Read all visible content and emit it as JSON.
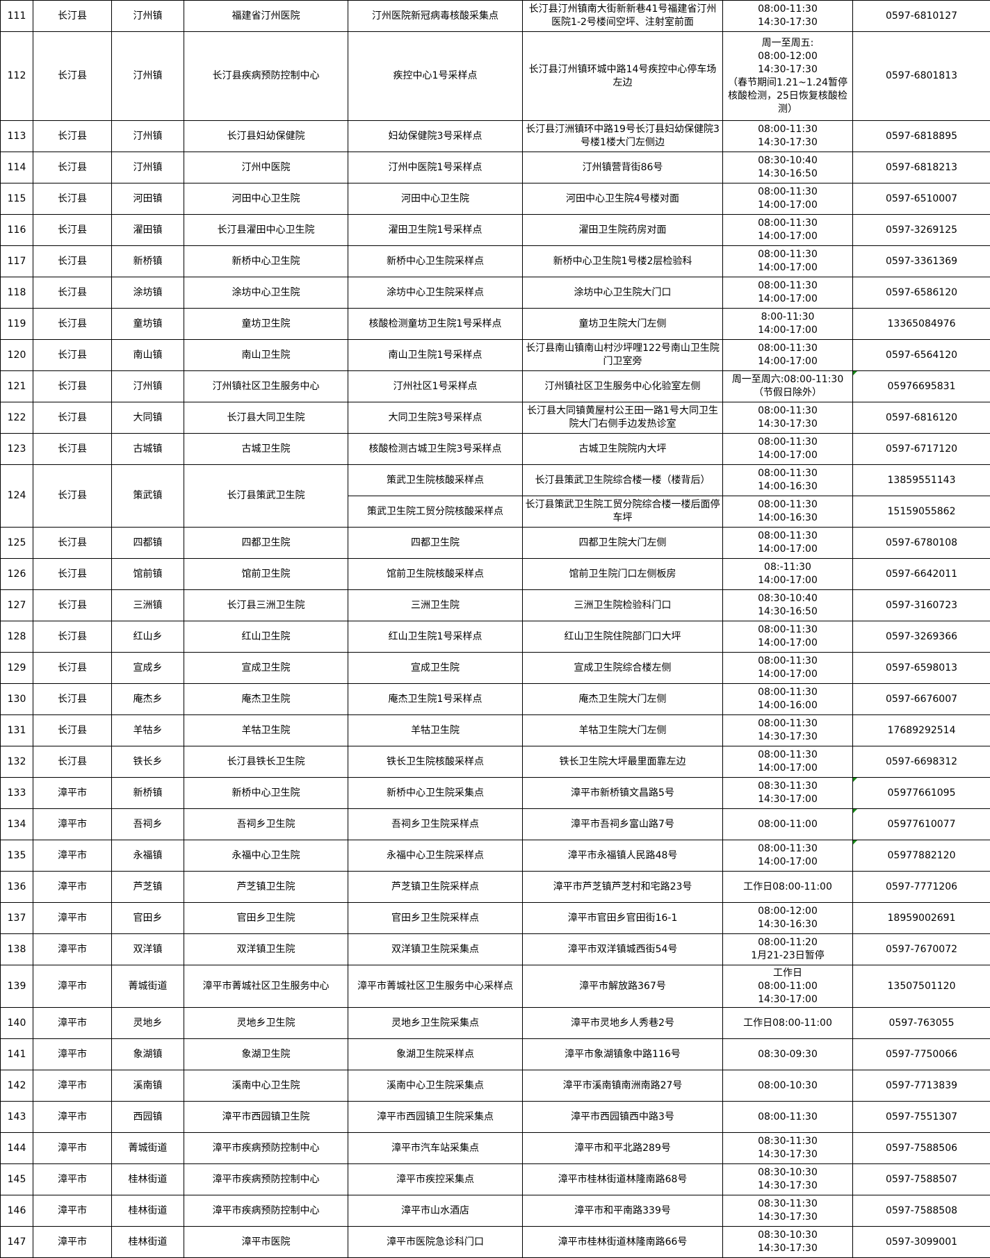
{
  "rows": [
    {
      "no": "111",
      "county": "长汀县",
      "town": "汀州镇",
      "org": "福建省汀州医院",
      "site": "汀州医院新冠病毒核酸采集点",
      "addr": "长汀县汀州镇南大街新新巷41号福建省汀州医院1-2号楼间空坪、注射室前面",
      "time": "08:00-11:30\n14:30-17:30",
      "phone": "0597-6810127"
    },
    {
      "no": "112",
      "county": "长汀县",
      "town": "汀州镇",
      "org": "长汀县疾病预防控制中心",
      "site": "疾控中心1号采样点",
      "addr": "长汀县汀州镇环城中路14号疾控中心停车场左边",
      "time": "周一至周五:\n08:00-12:00\n14:30-17:30\n（春节期间1.21~1.24暂停核酸检测，25日恢复核酸检测）",
      "phone": "0597-6801813"
    },
    {
      "no": "113",
      "county": "长汀县",
      "town": "汀州镇",
      "org": "长汀县妇幼保健院",
      "site": "妇幼保健院3号采样点",
      "addr": "长汀县汀洲镇环中路19号长汀县妇幼保健院3号楼1楼大门左侧边",
      "time": "08:00-11:30\n14:30-17:30",
      "phone": "0597-6818895"
    },
    {
      "no": "114",
      "county": "长汀县",
      "town": "汀州镇",
      "org": "汀州中医院",
      "site": "汀州中医院1号采样点",
      "addr": "汀州镇营背街86号",
      "time": "08:30-10:40\n14:30-16:50",
      "phone": "0597-6818213"
    },
    {
      "no": "115",
      "county": "长汀县",
      "town": "河田镇",
      "org": "河田中心卫生院",
      "site": "河田中心卫生院",
      "addr": "河田中心卫生院4号楼对面",
      "time": "08:00-11:30\n14:00-17:00",
      "phone": "0597-6510007"
    },
    {
      "no": "116",
      "county": "长汀县",
      "town": "濯田镇",
      "org": "长汀县濯田中心卫生院",
      "site": "濯田卫生院1号采样点",
      "addr": "濯田卫生院药房对面",
      "time": "08:00-11:30\n14:00-17:00",
      "phone": "0597-3269125"
    },
    {
      "no": "117",
      "county": "长汀县",
      "town": "新桥镇",
      "org": "新桥中心卫生院",
      "site": "新桥中心卫生院采样点",
      "addr": "新桥中心卫生院1号楼2层检验科",
      "time": "08:00-11:30\n14:00-17:00",
      "phone": "0597-3361369"
    },
    {
      "no": "118",
      "county": "长汀县",
      "town": "涂坊镇",
      "org": "涂坊中心卫生院",
      "site": "涂坊中心卫生院采样点",
      "addr": "涂坊中心卫生院大门口",
      "time": "08:00-11:30\n14:00-17:00",
      "phone": "0597-6586120"
    },
    {
      "no": "119",
      "county": "长汀县",
      "town": "童坊镇",
      "org": "童坊卫生院",
      "site": "核酸检测童坊卫生院1号采样点",
      "addr": "童坊卫生院大门左侧",
      "time": "8:00-11:30\n14:00-17:00",
      "phone": "13365084976"
    },
    {
      "no": "120",
      "county": "长汀县",
      "town": "南山镇",
      "org": "南山卫生院",
      "site": "南山卫生院1号采样点",
      "addr": "长汀县南山镇南山村沙坪哩122号南山卫生院门卫室旁",
      "time": "08:00-11:30\n14:00-17:00",
      "phone": "0597-6564120"
    },
    {
      "no": "121",
      "county": "长汀县",
      "town": "汀州镇",
      "org": "汀州镇社区卫生服务中心",
      "site": "汀州社区1号采样点",
      "addr": "汀州镇社区卫生服务中心化验室左侧",
      "time": "周一至周六:08:00-11:30\n（节假日除外）",
      "phone": "05976695831",
      "flag": true
    },
    {
      "no": "122",
      "county": "长汀县",
      "town": "大同镇",
      "org": "长汀县大同卫生院",
      "site": "大同卫生院3号采样点",
      "addr": "长汀县大同镇黄屋村公王田一路1号大同卫生院大门右侧手边发热诊室",
      "time": "08:00-11:30\n14:30-17:30",
      "phone": "0597-6816120"
    },
    {
      "no": "123",
      "county": "长汀县",
      "town": "古城镇",
      "org": "古城卫生院",
      "site": "核酸检测古城卫生院3号采样点",
      "addr": "古城卫生院院内大坪",
      "time": "08:00-11:30\n14:00-17:00",
      "phone": "0597-6717120"
    },
    {
      "no": "124",
      "county": "长汀县",
      "town": "策武镇",
      "org": "长汀县策武卫生院",
      "subs": [
        {
          "site": "策武卫生院核酸采样点",
          "addr": "长汀县策武卫生院综合楼一楼（楼背后）",
          "time": "08:00-11:30\n14:00-16:30",
          "phone": "13859551143"
        },
        {
          "site": "策武卫生院工贸分院核酸采样点",
          "addr": "长汀县策武卫生院工贸分院综合楼一楼后面停车坪",
          "time": "08:00-11:30\n14:00-16:30",
          "phone": "15159055862"
        }
      ]
    },
    {
      "no": "125",
      "county": "长汀县",
      "town": "四都镇",
      "org": "四都卫生院",
      "site": "四都卫生院",
      "addr": "四都卫生院大门左侧",
      "time": "08:00-11:30\n14:00-17:00",
      "phone": "0597-6780108"
    },
    {
      "no": "126",
      "county": "长汀县",
      "town": "馆前镇",
      "org": "馆前卫生院",
      "site": "馆前卫生院核酸采样点",
      "addr": "馆前卫生院门口左侧板房",
      "time": "08:-11:30\n14:00-17:00",
      "phone": "0597-6642011"
    },
    {
      "no": "127",
      "county": "长汀县",
      "town": "三洲镇",
      "org": "长汀县三洲卫生院",
      "site": "三洲卫生院",
      "addr": "三洲卫生院检验科门口",
      "time": "08:30-10:40\n14:30-16:50",
      "phone": "0597-3160723"
    },
    {
      "no": "128",
      "county": "长汀县",
      "town": "红山乡",
      "org": "红山卫生院",
      "site": "红山卫生院1号采样点",
      "addr": "红山卫生院住院部门口大坪",
      "time": "08:00-11:30\n14:00-17:00",
      "phone": "0597-3269366"
    },
    {
      "no": "129",
      "county": "长汀县",
      "town": "宣成乡",
      "org": "宣成卫生院",
      "site": "宣成卫生院",
      "addr": "宣成卫生院综合楼左侧",
      "time": "08:00-11:30\n14:00-17:00",
      "phone": "0597-6598013"
    },
    {
      "no": "130",
      "county": "长汀县",
      "town": "庵杰乡",
      "org": "庵杰卫生院",
      "site": "庵杰卫生院1号采样点",
      "addr": "庵杰卫生院大门左侧",
      "time": "08:00-11:30\n14:00-16:00",
      "phone": "0597-6676007"
    },
    {
      "no": "131",
      "county": "长汀县",
      "town": "羊牯乡",
      "org": "羊牯卫生院",
      "site": "羊牯卫生院",
      "addr": "羊牯卫生院大门左侧",
      "time": "08:00-11:30\n14:30-17:30",
      "phone": "17689292514"
    },
    {
      "no": "132",
      "county": "长汀县",
      "town": "铁长乡",
      "org": "长汀县铁长卫生院",
      "site": "铁长卫生院核酸采样点",
      "addr": "铁长卫生院大坪最里面靠左边",
      "time": "08:00-11:30\n14:00-17:00",
      "phone": "0597-6698312"
    },
    {
      "no": "133",
      "county": "漳平市",
      "town": "新桥镇",
      "org": "新桥中心卫生院",
      "site": "新桥中心卫生院采集点",
      "addr": "漳平市新桥镇文昌路5号",
      "time": "08:30-11:30\n14:30-17:00",
      "phone": "05977661095",
      "flag": true
    },
    {
      "no": "134",
      "county": "漳平市",
      "town": "吾祠乡",
      "org": "吾祠乡卫生院",
      "site": "吾祠乡卫生院采样点",
      "addr": "漳平市吾祠乡富山路7号",
      "time": "08:00-11:00",
      "phone": "05977610077",
      "flag": true
    },
    {
      "no": "135",
      "county": "漳平市",
      "town": "永福镇",
      "org": "永福中心卫生院",
      "site": "永福中心卫生院采样点",
      "addr": "漳平市永福镇人民路48号",
      "time": "08:00-11:30\n14:00-17:00",
      "phone": "05977882120",
      "flag": true
    },
    {
      "no": "136",
      "county": "漳平市",
      "town": "芦芝镇",
      "org": "芦芝镇卫生院",
      "site": "芦芝镇卫生院采样点",
      "addr": "漳平市芦芝镇芦芝村和宅路23号",
      "time": "工作日08:00-11:00",
      "phone": "0597-7771206"
    },
    {
      "no": "137",
      "county": "漳平市",
      "town": "官田乡",
      "org": "官田乡卫生院",
      "site": "官田乡卫生院采样点",
      "addr": "漳平市官田乡官田街16-1",
      "time": "08:00-12:00\n14:30-16:30",
      "phone": "18959002691"
    },
    {
      "no": "138",
      "county": "漳平市",
      "town": "双洋镇",
      "org": "双洋镇卫生院",
      "site": "双洋镇卫生院采集点",
      "addr": "漳平市双洋镇城西街54号",
      "time": "08:00-11:20\n1月21-23日暂停",
      "phone": "0597-7670072"
    },
    {
      "no": "139",
      "county": "漳平市",
      "town": "菁城街道",
      "org": "漳平市菁城社区卫生服务中心",
      "site": "漳平市菁城社区卫生服务中心采样点",
      "addr": "漳平市解放路367号",
      "time": "工作日\n08:00-11:00\n14:30-17:00",
      "phone": "13507501120"
    },
    {
      "no": "140",
      "county": "漳平市",
      "town": "灵地乡",
      "org": "灵地乡卫生院",
      "site": "灵地乡卫生院采集点",
      "addr": "漳平市灵地乡人秀巷2号",
      "time": "工作日08:00-11:00",
      "phone": "0597-763055"
    },
    {
      "no": "141",
      "county": "漳平市",
      "town": "象湖镇",
      "org": "象湖卫生院",
      "site": "象湖卫生院采样点",
      "addr": "漳平市象湖镇象中路116号",
      "time": "08:30-09:30",
      "phone": "0597-7750066"
    },
    {
      "no": "142",
      "county": "漳平市",
      "town": "溪南镇",
      "org": "溪南中心卫生院",
      "site": "溪南中心卫生院采集点",
      "addr": "漳平市溪南镇南洲南路27号",
      "time": "08:00-10:30",
      "phone": "0597-7713839"
    },
    {
      "no": "143",
      "county": "漳平市",
      "town": "西园镇",
      "org": "漳平市西园镇卫生院",
      "site": "漳平市西园镇卫生院采集点",
      "addr": "漳平市西园镇西中路3号",
      "time": "08:00-11:30",
      "phone": "0597-7551307"
    },
    {
      "no": "144",
      "county": "漳平市",
      "town": "菁城街道",
      "org": "漳平市疾病预防控制中心",
      "site": "漳平市汽车站采集点",
      "addr": "漳平市和平北路289号",
      "time": "08:30-11:30\n14:30-17:30",
      "phone": "0597-7588506"
    },
    {
      "no": "145",
      "county": "漳平市",
      "town": "桂林街道",
      "org": "漳平市疾病预防控制中心",
      "site": "漳平市疾控采集点",
      "addr": "漳平市桂林街道林隆南路68号",
      "time": "08:30-10:30\n14:30-17:30",
      "phone": "0597-7588507"
    },
    {
      "no": "146",
      "county": "漳平市",
      "town": "桂林街道",
      "org": "漳平市疾病预防控制中心",
      "site": "漳平市山水酒店",
      "addr": "漳平市和平南路339号",
      "time": "08:30-11:30\n14:30-17:30",
      "phone": "0597-7588508"
    },
    {
      "no": "147",
      "county": "漳平市",
      "town": "桂林街道",
      "org": "漳平市医院",
      "site": "漳平市医院急诊科门口",
      "addr": "漳平市桂林街道林隆南路66号",
      "time": "08:30-10:30\n14:30-17:30",
      "phone": "0597-3099001"
    }
  ],
  "colors": {
    "border": "#000000",
    "comment_flag": "#1a8a1a"
  }
}
